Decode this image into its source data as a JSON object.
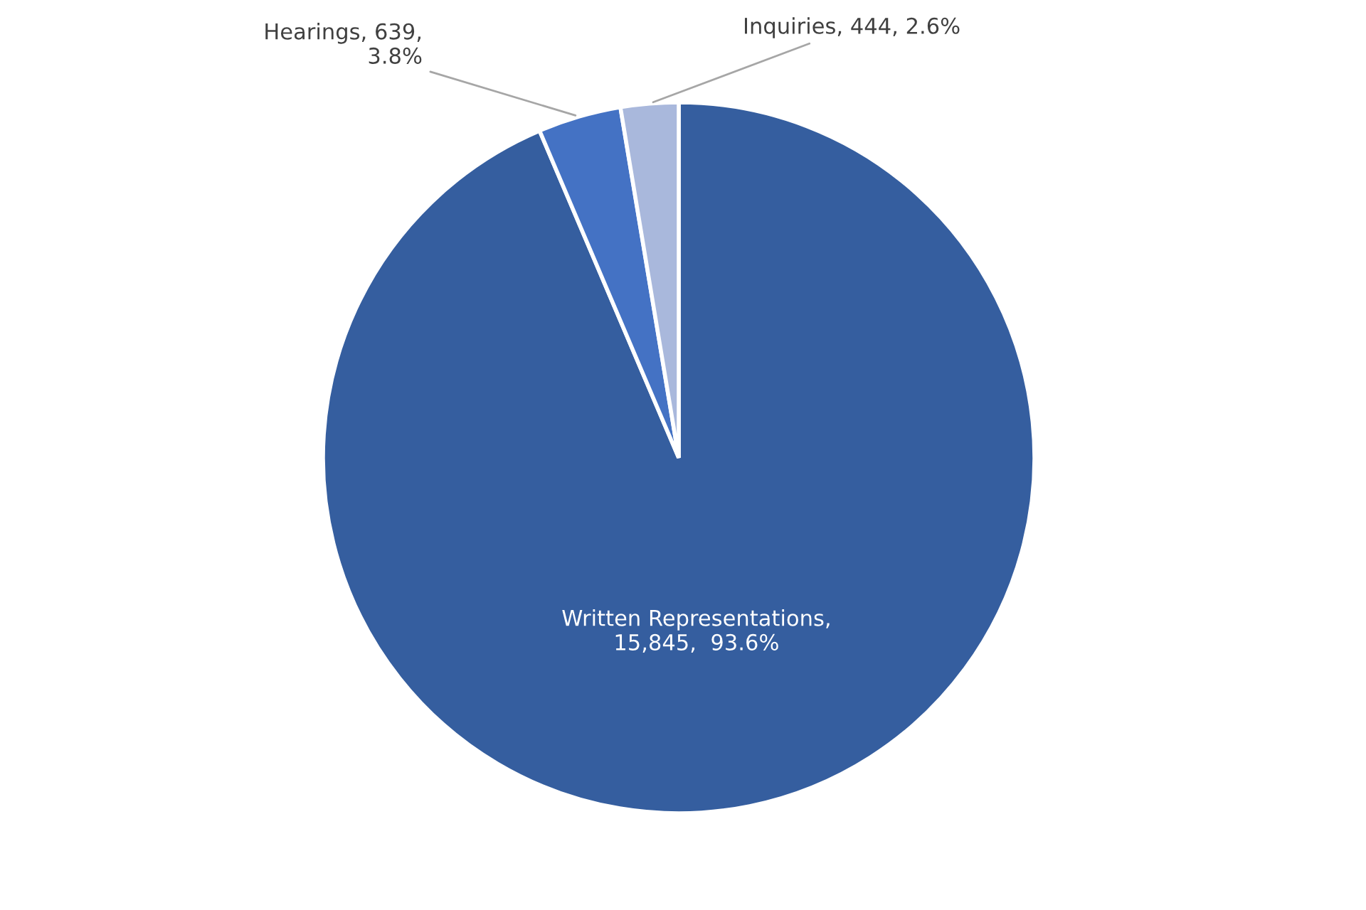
{
  "chart_data": {
    "type": "pie",
    "categories": [
      "Written Representations",
      "Hearings",
      "Inquiries"
    ],
    "values": [
      15845,
      639,
      444
    ],
    "colors": [
      "#355e9f",
      "#4472c4",
      "#a9b8dc"
    ],
    "value_labels": [
      ",\n15,845,  93.6%",
      ", 639,\n3.8%",
      ", 444, 2.6%"
    ],
    "legend": false
  }
}
